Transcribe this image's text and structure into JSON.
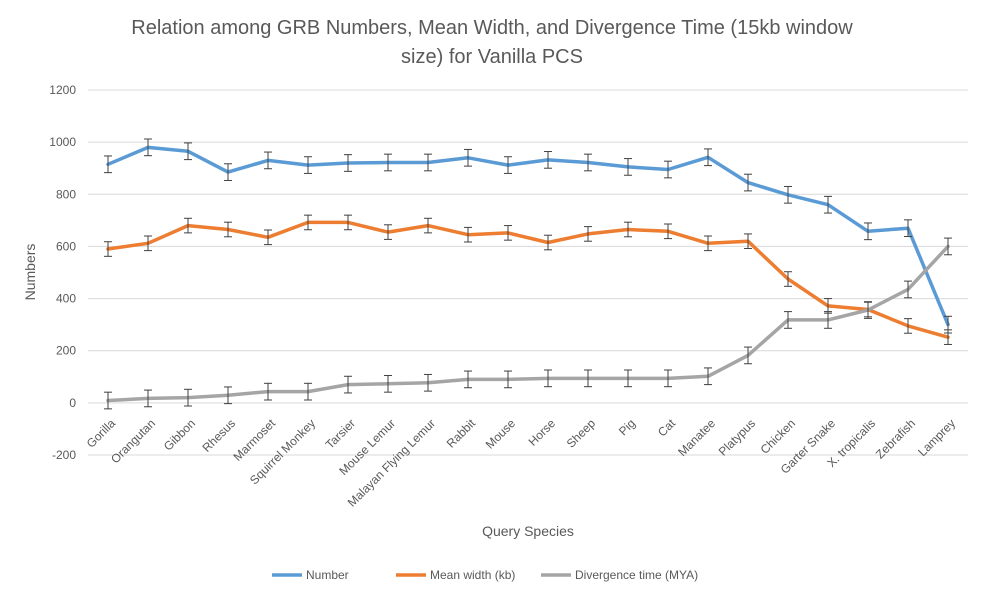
{
  "chart_data": {
    "type": "line",
    "title_lines": [
      "Relation among GRB Numbers, Mean Width, and Divergence Time (15kb window",
      "size) for Vanilla PCS"
    ],
    "xlabel": "Query Species",
    "ylabel": "Numbers",
    "ylim": [
      -200,
      1200
    ],
    "yticks": [
      -200,
      0,
      200,
      400,
      600,
      800,
      1000,
      1200
    ],
    "grid": true,
    "legend_position": "bottom",
    "error_bars": true,
    "categories": [
      "Gorilla",
      "Orangutan",
      "Gibbon",
      "Rhesus",
      "Marmoset",
      "Squirrel Monkey",
      "Tarsier",
      "Mouse Lemur",
      "Malayan Flying Lemur",
      "Rabbit",
      "Mouse",
      "Horse",
      "Sheep",
      "Pig",
      "Cat",
      "Manatee",
      "Platypus",
      "Chicken",
      "Garter Snake",
      "X. tropicalis",
      "Zebrafish",
      "Lamprey"
    ],
    "series": [
      {
        "name": "Number",
        "color": "#5B9BD5",
        "values": [
          915,
          980,
          965,
          885,
          930,
          912,
          920,
          922,
          922,
          940,
          912,
          932,
          922,
          905,
          895,
          942,
          845,
          798,
          760,
          658,
          670,
          300
        ],
        "errors": [
          32,
          32,
          32,
          32,
          32,
          32,
          32,
          32,
          32,
          32,
          32,
          32,
          32,
          32,
          32,
          32,
          32,
          32,
          32,
          32,
          32,
          32
        ]
      },
      {
        "name": "Mean width (kb)",
        "color": "#ED7D31",
        "values": [
          590,
          612,
          680,
          665,
          635,
          692,
          692,
          655,
          680,
          645,
          652,
          615,
          648,
          665,
          658,
          612,
          620,
          475,
          372,
          358,
          295,
          252
        ],
        "errors": [
          28,
          28,
          28,
          28,
          28,
          28,
          28,
          28,
          28,
          28,
          28,
          28,
          28,
          28,
          28,
          28,
          28,
          28,
          28,
          28,
          28,
          28
        ]
      },
      {
        "name": "Divergence time (MYA)",
        "color": "#A5A5A5",
        "values": [
          9,
          17,
          20,
          29,
          43,
          43,
          70,
          73,
          77,
          90,
          90,
          94,
          94,
          94,
          94,
          102,
          182,
          318,
          318,
          356,
          435,
          600
        ],
        "errors": [
          32,
          32,
          32,
          32,
          32,
          32,
          32,
          32,
          32,
          32,
          32,
          32,
          32,
          32,
          32,
          32,
          32,
          32,
          32,
          32,
          32,
          32
        ]
      }
    ]
  },
  "colors": {
    "grid": "#D9D9D9",
    "text": "#595959",
    "error_bar": "#404040"
  }
}
